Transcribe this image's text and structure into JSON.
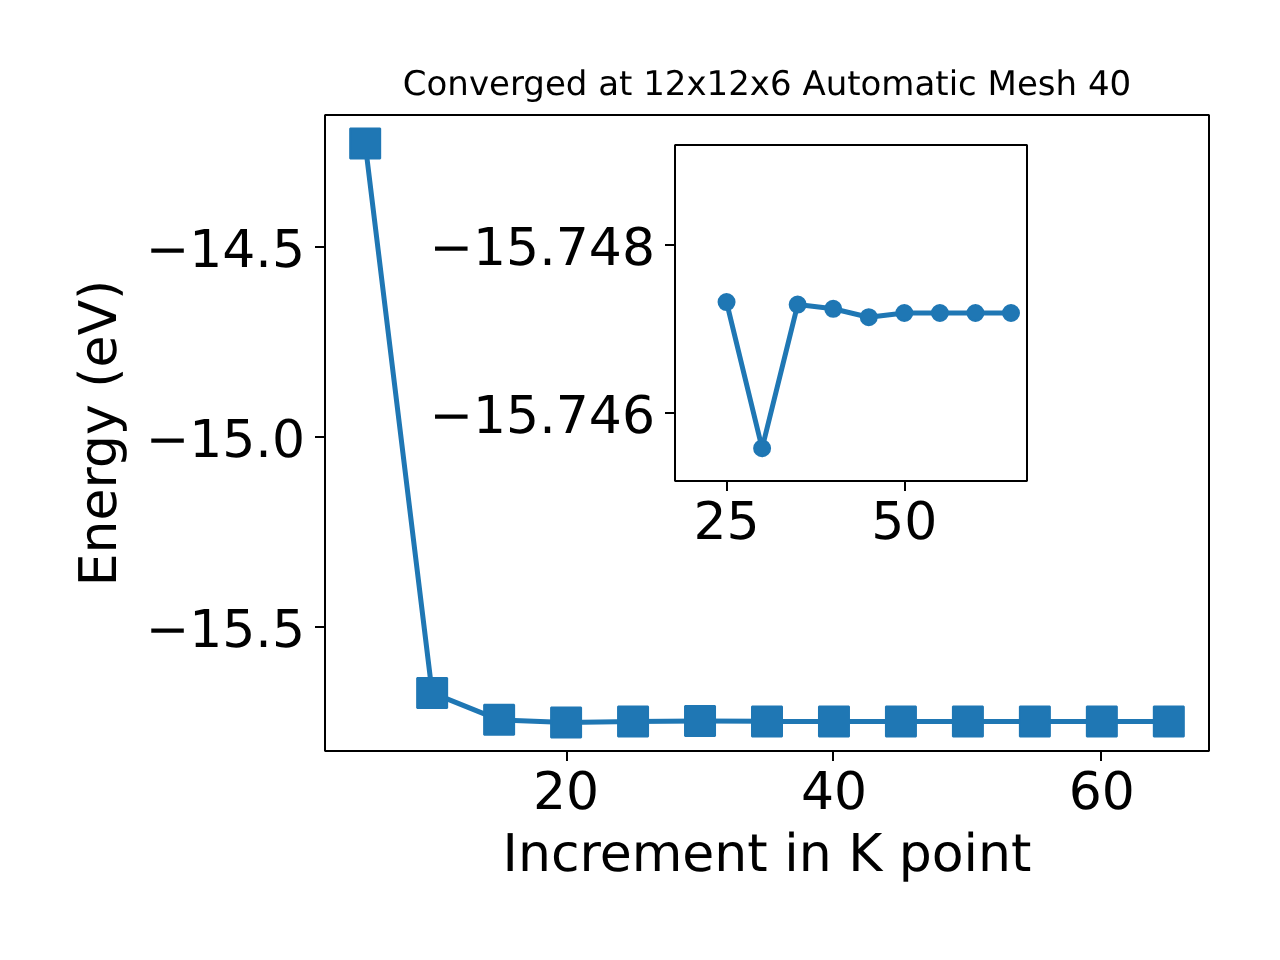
{
  "chart_data": [
    {
      "type": "line",
      "title": "Converged at 12x12x6 Automatic Mesh 40",
      "xlabel": "Increment in K point",
      "ylabel": "Energy (eV)",
      "marker": "square",
      "line_style": "solid",
      "grid": false,
      "x": [
        5,
        10,
        15,
        20,
        25,
        30,
        35,
        40,
        45,
        50,
        55,
        60,
        65
      ],
      "series": [
        {
          "color": "#1f77b4",
          "values": [
            -14.225,
            -15.672,
            -15.743,
            -15.75,
            -15.747,
            -15.746,
            -15.747,
            -15.747,
            -15.747,
            -15.747,
            -15.747,
            -15.747,
            -15.747
          ]
        }
      ],
      "xlim": [
        2,
        68
      ],
      "ylim": [
        -15.825,
        -14.15
      ],
      "xticks": [
        20,
        40,
        60
      ],
      "yticks": [
        {
          "value": -14.5,
          "label": "−14.5"
        },
        {
          "value": -15.0,
          "label": "−15.0"
        },
        {
          "value": -15.5,
          "label": "−15.5"
        }
      ]
    },
    {
      "type": "line",
      "marker": "circle",
      "line_style": "solid",
      "grid": false,
      "x": [
        25,
        30,
        35,
        40,
        45,
        50,
        55,
        60,
        65
      ],
      "series": [
        {
          "color": "#1f77b4",
          "values": [
            -15.74733,
            -15.74559,
            -15.7473,
            -15.74725,
            -15.74715,
            -15.7472,
            -15.7472,
            -15.7472,
            -15.7472
          ]
        }
      ],
      "xlim": [
        17.75,
        67.25
      ],
      "ylim": [
        -15.7452,
        -15.7492
      ],
      "xticks": [
        25,
        50
      ],
      "yticks": [
        {
          "value": -15.748,
          "label": "−15.748"
        },
        {
          "value": -15.746,
          "label": "−15.746"
        }
      ]
    }
  ]
}
